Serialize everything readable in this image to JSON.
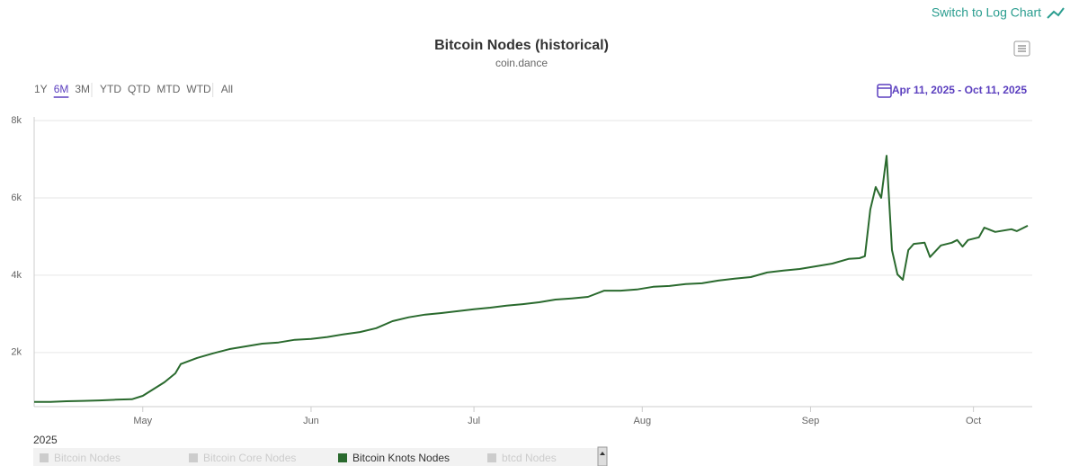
{
  "chart_data": {
    "type": "line",
    "title": "Bitcoin Nodes (historical)",
    "subtitle": "coin.dance",
    "log_switch": "Switch to Log Chart",
    "range_buttons": [
      "1Y",
      "6M",
      "3M",
      "YTD",
      "QTD",
      "MTD",
      "WTD",
      "All"
    ],
    "range_selected": "6M",
    "date_range": "Apr 11, 2025 - Oct 11, 2025",
    "x_axis_label": "2025",
    "xlim": [
      "2025-04-11",
      "2025-10-11"
    ],
    "xticks": [
      {
        "value": "2025-05-01",
        "label": "May"
      },
      {
        "value": "2025-06-01",
        "label": "Jun"
      },
      {
        "value": "2025-07-01",
        "label": "Jul"
      },
      {
        "value": "2025-08-01",
        "label": "Aug"
      },
      {
        "value": "2025-09-01",
        "label": "Sep"
      },
      {
        "value": "2025-10-01",
        "label": "Oct"
      }
    ],
    "ylim": [
      600,
      8000
    ],
    "yticks": [
      {
        "value": 2000,
        "label": "2k"
      },
      {
        "value": 4000,
        "label": "4k"
      },
      {
        "value": 6000,
        "label": "6k"
      },
      {
        "value": 8000,
        "label": "8k"
      }
    ],
    "grid": true,
    "x": [
      "2025-04-11",
      "2025-04-14",
      "2025-04-17",
      "2025-04-20",
      "2025-04-23",
      "2025-04-26",
      "2025-04-29",
      "2025-05-01",
      "2025-05-05",
      "2025-05-07",
      "2025-05-08",
      "2025-05-11",
      "2025-05-14",
      "2025-05-17",
      "2025-05-20",
      "2025-05-23",
      "2025-05-26",
      "2025-05-29",
      "2025-06-01",
      "2025-06-04",
      "2025-06-07",
      "2025-06-10",
      "2025-06-13",
      "2025-06-16",
      "2025-06-19",
      "2025-06-22",
      "2025-06-25",
      "2025-06-28",
      "2025-07-01",
      "2025-07-04",
      "2025-07-07",
      "2025-07-10",
      "2025-07-13",
      "2025-07-16",
      "2025-07-19",
      "2025-07-22",
      "2025-07-25",
      "2025-07-28",
      "2025-07-31",
      "2025-08-03",
      "2025-08-06",
      "2025-08-09",
      "2025-08-12",
      "2025-08-15",
      "2025-08-18",
      "2025-08-21",
      "2025-08-24",
      "2025-08-27",
      "2025-08-30",
      "2025-09-02",
      "2025-09-05",
      "2025-09-08",
      "2025-09-10",
      "2025-09-11",
      "2025-09-12",
      "2025-09-13",
      "2025-09-14",
      "2025-09-15",
      "2025-09-16",
      "2025-09-17",
      "2025-09-18",
      "2025-09-19",
      "2025-09-20",
      "2025-09-22",
      "2025-09-23",
      "2025-09-25",
      "2025-09-27",
      "2025-09-28",
      "2025-09-29",
      "2025-09-30",
      "2025-10-02",
      "2025-10-03",
      "2025-10-05",
      "2025-10-08",
      "2025-10-09",
      "2025-10-11"
    ],
    "series": [
      {
        "name": "Bitcoin Nodes",
        "visible": false,
        "color": "#cccccc"
      },
      {
        "name": "Bitcoin Core Nodes",
        "visible": false,
        "color": "#cccccc"
      },
      {
        "name": "Bitcoin Knots Nodes",
        "visible": true,
        "color": "#2a6a2e",
        "values": [
          720,
          720,
          740,
          750,
          760,
          780,
          790,
          880,
          1230,
          1460,
          1700,
          1860,
          1980,
          2090,
          2160,
          2230,
          2260,
          2330,
          2350,
          2400,
          2470,
          2530,
          2630,
          2810,
          2910,
          2980,
          3020,
          3070,
          3120,
          3160,
          3210,
          3250,
          3300,
          3370,
          3400,
          3440,
          3600,
          3600,
          3630,
          3700,
          3720,
          3770,
          3790,
          3860,
          3910,
          3950,
          4070,
          4120,
          4160,
          4230,
          4300,
          4420,
          4440,
          4490,
          5700,
          6280,
          6000,
          7090,
          4650,
          4020,
          3880,
          4650,
          4810,
          4840,
          4470,
          4770,
          4840,
          4910,
          4740,
          4910,
          4980,
          5230,
          5120,
          5190,
          5140,
          5280
        ]
      },
      {
        "name": "btcd Nodes",
        "visible": false,
        "color": "#cccccc"
      }
    ]
  }
}
